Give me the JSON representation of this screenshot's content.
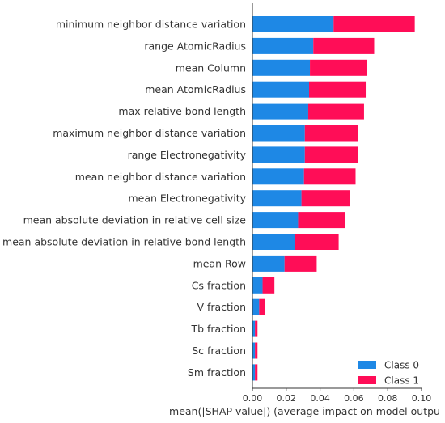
{
  "chart_data": {
    "type": "bar",
    "orientation": "horizontal",
    "stacked": true,
    "title": "",
    "xlabel": "mean(|SHAP value|) (average impact on model outpu",
    "ylabel": "",
    "xlim": [
      0,
      0.1
    ],
    "xticks": [
      "0.00",
      "0.02",
      "0.04",
      "0.06",
      "0.08",
      "0.10"
    ],
    "grid": false,
    "legend_position": "bottom-right",
    "categories": [
      "minimum neighbor distance variation",
      "range AtomicRadius",
      "mean Column",
      "mean AtomicRadius",
      "max relative bond length",
      "maximum neighbor distance variation",
      "range Electronegativity",
      "mean neighbor distance variation",
      "mean Electronegativity",
      "mean absolute deviation in relative cell size",
      "mean absolute deviation in relative bond length",
      "mean Row",
      "Cs fraction",
      "V fraction",
      "Tb fraction",
      "Sc fraction",
      "Sm fraction"
    ],
    "series": [
      {
        "name": "Class 0",
        "color": "#1e88e5",
        "values": [
          0.048,
          0.036,
          0.034,
          0.0335,
          0.033,
          0.031,
          0.031,
          0.0305,
          0.029,
          0.027,
          0.025,
          0.019,
          0.006,
          0.004,
          0.0015,
          0.0015,
          0.0015
        ]
      },
      {
        "name": "Class 1",
        "color": "#ff0d57",
        "values": [
          0.048,
          0.036,
          0.0335,
          0.0335,
          0.033,
          0.0315,
          0.0315,
          0.0305,
          0.0285,
          0.028,
          0.026,
          0.019,
          0.007,
          0.0035,
          0.0015,
          0.0015,
          0.0015
        ]
      }
    ]
  }
}
